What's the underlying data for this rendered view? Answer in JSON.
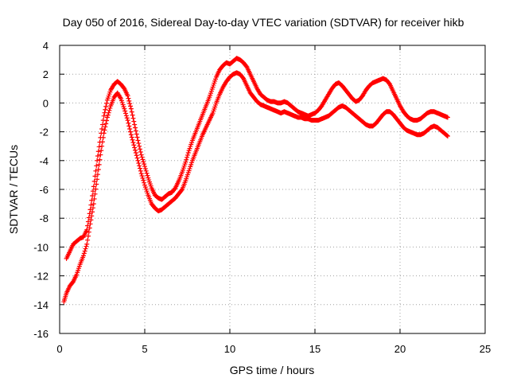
{
  "chart_data": {
    "type": "scatter",
    "title": "Day 050 of 2016, Sidereal Day-to-day VTEC variation (SDTVAR) for receiver hikb",
    "xlabel": "GPS time / hours",
    "ylabel": "SDTVAR / TECUs",
    "xlim": [
      0,
      25
    ],
    "ylim": [
      -16,
      4
    ],
    "xticks": [
      0,
      5,
      10,
      15,
      20,
      25
    ],
    "yticks": [
      -16,
      -14,
      -12,
      -10,
      -8,
      -6,
      -4,
      -2,
      0,
      2,
      4
    ],
    "xtick_labels": [
      "0",
      "5",
      "10",
      "15",
      "20",
      "25"
    ],
    "ytick_labels": [
      "-16",
      "-14",
      "-12",
      "-10",
      "-8",
      "-6",
      "-4",
      "-2",
      "0",
      "2",
      "4"
    ],
    "grid": true,
    "marker": "+",
    "color": "#ff0000",
    "series": [
      {
        "name": "lower track",
        "x": [
          0.25,
          0.4,
          0.6,
          0.8,
          1.0,
          1.2,
          1.4,
          1.6,
          1.8,
          2.0,
          2.2,
          2.4,
          2.6,
          2.8,
          3.0,
          3.2,
          3.4,
          3.6,
          3.8,
          4.0,
          4.2,
          4.4,
          4.6,
          4.8,
          5.0,
          5.2,
          5.4,
          5.6,
          5.8,
          6.0,
          6.2,
          6.4,
          6.6,
          6.8,
          7.0,
          7.2,
          7.4,
          7.6,
          7.8,
          8.0,
          8.2,
          8.4,
          8.6,
          8.8,
          9.0,
          9.2,
          9.4,
          9.6,
          9.8,
          10.0,
          10.2,
          10.4,
          10.6,
          10.8,
          11.0,
          11.2,
          11.4,
          11.6,
          11.8,
          12.0,
          12.2,
          12.4,
          12.6,
          12.8,
          13.0,
          13.2,
          13.4,
          13.6,
          13.8,
          14.0,
          14.2,
          14.4,
          14.6,
          14.8,
          15.0,
          15.2,
          15.4,
          15.6,
          15.8,
          16.0,
          16.2,
          16.4,
          16.6,
          16.8,
          17.0,
          17.2,
          17.4,
          17.6,
          17.8,
          18.0,
          18.2,
          18.4,
          18.6,
          18.8,
          19.0,
          19.2,
          19.4,
          19.6,
          19.8,
          20.0,
          20.2,
          20.4,
          20.6,
          20.8,
          21.0,
          21.2,
          21.4,
          21.6,
          21.8,
          22.0,
          22.2,
          22.4,
          22.6,
          22.8
        ],
        "values": [
          -13.8,
          -13.2,
          -12.7,
          -12.4,
          -11.9,
          -11.2,
          -10.6,
          -9.8,
          -8.4,
          -7.0,
          -5.3,
          -3.6,
          -2.1,
          -1.0,
          -0.2,
          0.4,
          0.7,
          0.3,
          -0.4,
          -1.2,
          -2.2,
          -3.1,
          -4.0,
          -4.9,
          -5.7,
          -6.4,
          -7.0,
          -7.3,
          -7.5,
          -7.4,
          -7.2,
          -7.0,
          -6.8,
          -6.6,
          -6.3,
          -6.0,
          -5.4,
          -4.7,
          -4.0,
          -3.4,
          -2.8,
          -2.2,
          -1.7,
          -1.2,
          -0.7,
          0.0,
          0.6,
          1.1,
          1.5,
          1.8,
          2.0,
          2.1,
          2.0,
          1.7,
          1.2,
          0.7,
          0.4,
          0.1,
          -0.1,
          -0.2,
          -0.3,
          -0.4,
          -0.5,
          -0.6,
          -0.7,
          -0.6,
          -0.7,
          -0.8,
          -0.9,
          -1.0,
          -1.0,
          -1.1,
          -1.1,
          -1.2,
          -1.2,
          -1.2,
          -1.1,
          -1.0,
          -0.9,
          -0.7,
          -0.5,
          -0.3,
          -0.2,
          -0.3,
          -0.5,
          -0.7,
          -0.9,
          -1.1,
          -1.3,
          -1.5,
          -1.6,
          -1.6,
          -1.4,
          -1.1,
          -0.8,
          -0.6,
          -0.6,
          -0.8,
          -1.1,
          -1.4,
          -1.7,
          -1.9,
          -2.0,
          -2.1,
          -2.2,
          -2.2,
          -2.1,
          -1.9,
          -1.7,
          -1.6,
          -1.7,
          -1.9,
          -2.1,
          -2.3
        ]
      },
      {
        "name": "upper track",
        "x": [
          0.4,
          0.6,
          0.8,
          1.0,
          1.2,
          1.4,
          1.6,
          1.8,
          2.0,
          2.2,
          2.4,
          2.6,
          2.8,
          3.0,
          3.2,
          3.4,
          3.6,
          3.8,
          4.0,
          4.2,
          4.4,
          4.6,
          4.8,
          5.0,
          5.2,
          5.4,
          5.6,
          5.8,
          6.0,
          6.2,
          6.4,
          6.6,
          6.8,
          7.0,
          7.2,
          7.4,
          7.6,
          7.8,
          8.0,
          8.2,
          8.4,
          8.6,
          8.8,
          9.0,
          9.2,
          9.4,
          9.6,
          9.8,
          10.0,
          10.2,
          10.4,
          10.6,
          10.8,
          11.0,
          11.2,
          11.4,
          11.6,
          11.8,
          12.0,
          12.2,
          12.4,
          12.6,
          12.8,
          13.0,
          13.2,
          13.4,
          13.6,
          13.8,
          14.0,
          14.2,
          14.4,
          14.6,
          14.8,
          15.0,
          15.2,
          15.4,
          15.6,
          15.8,
          16.0,
          16.2,
          16.4,
          16.6,
          16.8,
          17.0,
          17.2,
          17.4,
          17.6,
          17.8,
          18.0,
          18.2,
          18.4,
          18.6,
          18.8,
          19.0,
          19.2,
          19.4,
          19.6,
          19.8,
          20.0,
          20.2,
          20.4,
          20.6,
          20.8,
          21.0,
          21.2,
          21.4,
          21.6,
          21.8,
          22.0,
          22.2,
          22.4,
          22.6,
          22.8
        ],
        "values": [
          -10.8,
          -10.3,
          -9.8,
          -9.6,
          -9.4,
          -9.3,
          -8.8,
          -7.4,
          -5.8,
          -4.0,
          -2.4,
          -0.9,
          0.2,
          0.9,
          1.3,
          1.5,
          1.3,
          1.0,
          0.5,
          -0.4,
          -1.5,
          -2.6,
          -3.6,
          -4.4,
          -5.2,
          -5.9,
          -6.4,
          -6.6,
          -6.7,
          -6.5,
          -6.3,
          -6.2,
          -5.9,
          -5.4,
          -4.8,
          -4.1,
          -3.3,
          -2.6,
          -2.0,
          -1.4,
          -0.8,
          -0.2,
          0.4,
          1.1,
          1.8,
          2.3,
          2.6,
          2.8,
          2.7,
          2.9,
          3.1,
          3.0,
          2.8,
          2.5,
          2.0,
          1.5,
          1.0,
          0.6,
          0.4,
          0.2,
          0.1,
          0.1,
          0.0,
          0.0,
          0.1,
          0.0,
          -0.2,
          -0.4,
          -0.6,
          -0.7,
          -0.8,
          -0.9,
          -0.8,
          -0.7,
          -0.5,
          -0.2,
          0.2,
          0.6,
          1.0,
          1.3,
          1.4,
          1.2,
          0.9,
          0.6,
          0.3,
          0.1,
          0.2,
          0.5,
          0.9,
          1.2,
          1.4,
          1.5,
          1.6,
          1.7,
          1.6,
          1.3,
          0.8,
          0.3,
          -0.2,
          -0.6,
          -0.9,
          -1.1,
          -1.2,
          -1.2,
          -1.1,
          -0.9,
          -0.7,
          -0.6,
          -0.6,
          -0.7,
          -0.8,
          -0.9,
          -1.0
        ]
      }
    ]
  }
}
